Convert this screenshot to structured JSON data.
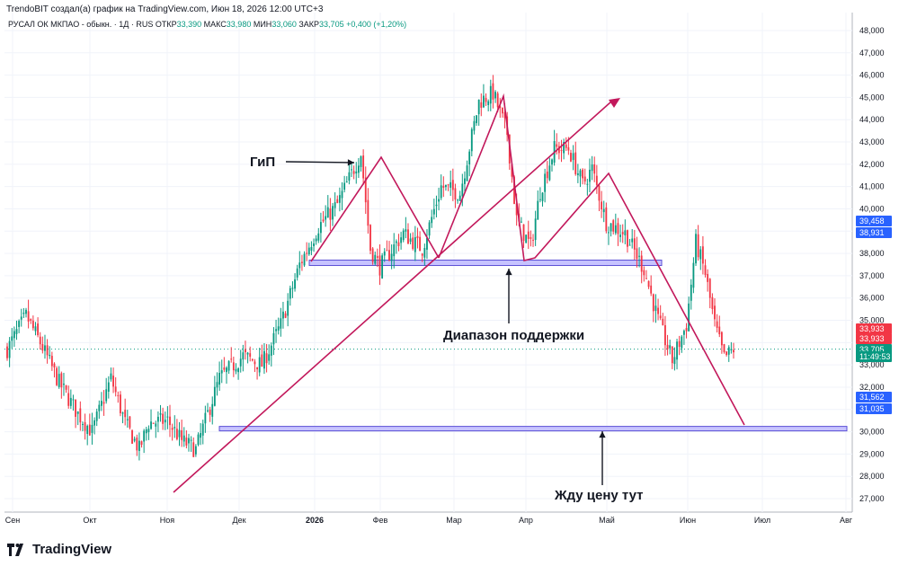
{
  "header": {
    "published": "TrendoBIT создал(а) график на TradingView.com, Июн 18, 2026 12:00 UTC+3",
    "symbol": "РУСАЛ ОК МКПАО - обыкн. · 1Д · RUS",
    "ohlc": [
      {
        "label": "ОТКР",
        "value": "33,390"
      },
      {
        "label": "МАКС",
        "value": "33,980"
      },
      {
        "label": "МИН",
        "value": "33,060"
      },
      {
        "label": "ЗАКР",
        "value": "33,705"
      }
    ],
    "change": "+0,400 (+1,20%)"
  },
  "footer": {
    "brand": "TradingView"
  },
  "chart_data": {
    "type": "candlestick",
    "ylim": [
      26.5,
      48.5
    ],
    "y_ticks": [
      "27,000",
      "28,000",
      "29,000",
      "30,000",
      "31,000",
      "32,000",
      "33,000",
      "34,000",
      "35,000",
      "36,000",
      "37,000",
      "38,000",
      "39,000",
      "40,000",
      "41,000",
      "42,000",
      "43,000",
      "44,000",
      "45,000",
      "46,000",
      "47,000",
      "48,000"
    ],
    "x_tick_labels": [
      "Сен",
      "Окт",
      "Ноя",
      "Дек",
      "2026",
      "Фев",
      "Мар",
      "Апр",
      "Май",
      "Июн",
      "Июл",
      "Авг"
    ],
    "colors": {
      "up": "#089981",
      "down": "#f23645",
      "line": "#c2185b",
      "zone_fill": "#b9b4ff",
      "zone_border": "#5b4fd6",
      "current": "#089981"
    },
    "price_badges": [
      {
        "value": "39,458",
        "color": "#2962ff"
      },
      {
        "value": "38,931",
        "color": "#2962ff"
      },
      {
        "value": "33,933",
        "color": "#f23645"
      },
      {
        "value": "33,933",
        "color": "#f23645"
      },
      {
        "value": "33,705",
        "color": "#089981"
      },
      {
        "value": "11:49:53",
        "color": "#089981"
      },
      {
        "value": "31,562",
        "color": "#2962ff"
      },
      {
        "value": "31,035",
        "color": "#2962ff"
      }
    ],
    "annotations": {
      "hs": "ГиП",
      "support": "Диапазон поддержки",
      "target": "Жду цену тут"
    },
    "support_zone": [
      37.5,
      37.62
    ],
    "target_zone": [
      30.1,
      30.2
    ],
    "candle_anchors": [
      [
        0,
        33.7
      ],
      [
        8,
        35.2
      ],
      [
        14,
        34.0
      ],
      [
        22,
        32.2
      ],
      [
        30,
        30.8
      ],
      [
        36,
        30.0
      ],
      [
        44,
        32.4
      ],
      [
        50,
        30.4
      ],
      [
        56,
        29.2
      ],
      [
        60,
        30.4
      ],
      [
        68,
        30.5
      ],
      [
        74,
        29.6
      ],
      [
        80,
        29.2
      ],
      [
        90,
        32.4
      ],
      [
        100,
        33.4
      ],
      [
        108,
        33.0
      ],
      [
        116,
        34.8
      ],
      [
        124,
        37.5
      ],
      [
        132,
        39.2
      ],
      [
        140,
        40.2
      ],
      [
        150,
        42.5
      ],
      [
        154,
        38.2
      ],
      [
        158,
        37.4
      ],
      [
        168,
        38.9
      ],
      [
        176,
        38.2
      ],
      [
        184,
        41.0
      ],
      [
        192,
        40.7
      ],
      [
        200,
        44.8
      ],
      [
        206,
        45.2
      ],
      [
        212,
        43.4
      ],
      [
        216,
        39.5
      ],
      [
        222,
        38.3
      ],
      [
        226,
        40.8
      ],
      [
        232,
        42.7
      ],
      [
        238,
        42.7
      ],
      [
        244,
        41.1
      ],
      [
        248,
        41.8
      ],
      [
        254,
        39.4
      ],
      [
        262,
        38.9
      ],
      [
        270,
        37.3
      ],
      [
        276,
        35.0
      ],
      [
        282,
        33.2
      ],
      [
        288,
        34.8
      ],
      [
        292,
        38.5
      ],
      [
        296,
        37.1
      ],
      [
        300,
        34.8
      ],
      [
        304,
        33.3
      ],
      [
        308,
        33.705
      ]
    ]
  }
}
